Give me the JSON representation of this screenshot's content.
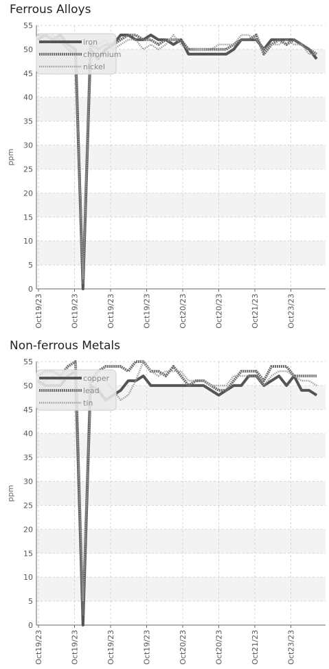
{
  "chart_data": [
    {
      "type": "line",
      "title": "Ferrous Alloys",
      "ylabel": "ppm",
      "ylim": [
        0,
        55
      ],
      "yticks": [
        0,
        5,
        10,
        15,
        20,
        25,
        30,
        35,
        40,
        45,
        50,
        55
      ],
      "xtick_labels": [
        "Oct19/23",
        "Oct19/23",
        "Oct19/23",
        "Oct19/23",
        "Oct20/23",
        "Oct20/23",
        "Oct21/23",
        "Oct23/23"
      ],
      "grid": true,
      "legend_position": "top-left",
      "series": [
        {
          "name": "iron",
          "color": "#555555",
          "style": "solid",
          "values": [
            52,
            53,
            52,
            53,
            51,
            50,
            0,
            50,
            48,
            50,
            51,
            53,
            53,
            52,
            52,
            53,
            52,
            52,
            51,
            52,
            49,
            49,
            49,
            49,
            49,
            49,
            50,
            52,
            52,
            52,
            50,
            52,
            52,
            52,
            52,
            51,
            50,
            48
          ]
        },
        {
          "name": "chromium",
          "color": "#6e6e6e",
          "style": "dense",
          "values": [
            53,
            53,
            52,
            52,
            50,
            49,
            1,
            51,
            50,
            51,
            51,
            52,
            53,
            53,
            52,
            52,
            51,
            52,
            52,
            52,
            50,
            50,
            50,
            50,
            50,
            50,
            51,
            52,
            52,
            53,
            49,
            51,
            52,
            51,
            52,
            51,
            50,
            49
          ]
        },
        {
          "name": "nickel",
          "color": "#9a9a9a",
          "style": "dotted",
          "values": [
            51,
            52,
            53,
            51,
            52,
            49,
            2,
            50,
            51,
            52,
            50,
            51,
            52,
            52,
            50,
            51,
            50,
            51,
            53,
            51,
            50,
            50,
            50,
            50,
            51,
            51,
            51,
            53,
            53,
            52,
            50,
            51,
            51,
            52,
            51,
            51,
            49,
            49
          ]
        }
      ]
    },
    {
      "type": "line",
      "title": "Non-ferrous Metals",
      "ylabel": "ppm",
      "ylim": [
        0,
        55
      ],
      "yticks": [
        0,
        5,
        10,
        15,
        20,
        25,
        30,
        35,
        40,
        45,
        50,
        55
      ],
      "xtick_labels": [
        "Oct19/23",
        "Oct19/23",
        "Oct19/23",
        "Oct19/23",
        "Oct20/23",
        "Oct20/23",
        "Oct21/23",
        "Oct23/23"
      ],
      "grid": true,
      "legend_position": "top-left",
      "series": [
        {
          "name": "copper",
          "color": "#555555",
          "style": "solid",
          "values": [
            51,
            50,
            50,
            50,
            52,
            53,
            0,
            50,
            49,
            47,
            48,
            49,
            51,
            51,
            52,
            50,
            50,
            50,
            50,
            50,
            50,
            50,
            50,
            49,
            48,
            49,
            50,
            50,
            52,
            52,
            50,
            51,
            52,
            50,
            52,
            49,
            49,
            48
          ]
        },
        {
          "name": "lead",
          "color": "#6e6e6e",
          "style": "dense",
          "values": [
            52,
            53,
            53,
            52,
            54,
            55,
            2,
            51,
            53,
            54,
            54,
            54,
            53,
            55,
            55,
            53,
            53,
            52,
            54,
            52,
            50,
            51,
            51,
            50,
            49,
            49,
            51,
            53,
            53,
            53,
            51,
            54,
            54,
            54,
            52,
            52,
            52,
            52
          ]
        },
        {
          "name": "tin",
          "color": "#9a9a9a",
          "style": "dotted",
          "values": [
            50,
            51,
            52,
            51,
            53,
            53,
            5,
            48,
            51,
            51,
            49,
            47,
            48,
            51,
            55,
            53,
            52,
            53,
            53,
            53,
            51,
            51,
            51,
            50,
            50,
            50,
            52,
            52,
            52,
            52,
            50,
            52,
            53,
            53,
            52,
            51,
            51,
            50
          ]
        }
      ]
    }
  ]
}
